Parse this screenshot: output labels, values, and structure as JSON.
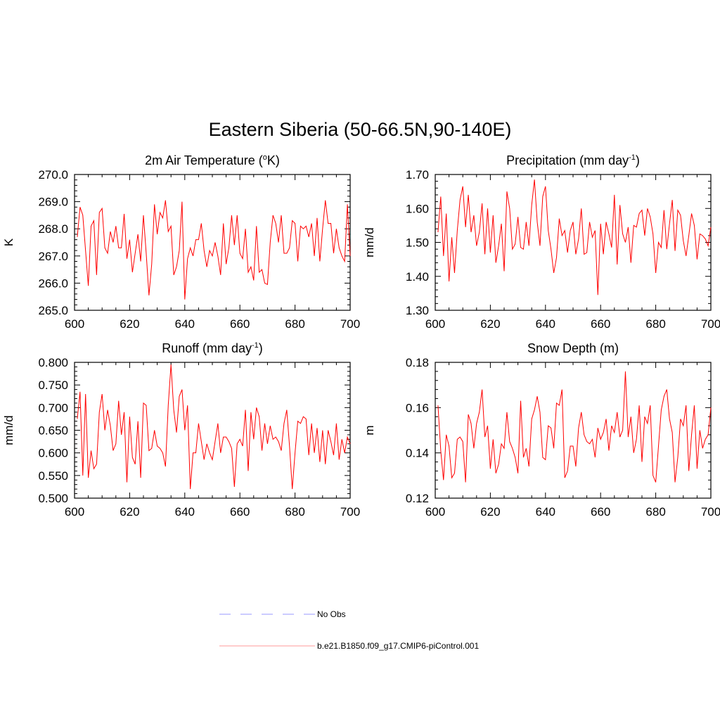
{
  "figure_title": "Eastern Siberia (50-66.5N,90-140E)",
  "colors": {
    "model_line": "#ff0000",
    "obs_line": "#9999ff",
    "model_legend": "#ff9999",
    "axes": "#000000"
  },
  "legend": [
    {
      "label": "No Obs",
      "style": "dashed"
    },
    {
      "label": "b.e21.B1850.f09_g17.CMIP6-piControl.001",
      "style": "solid"
    }
  ],
  "chart_data": [
    {
      "type": "line",
      "title": "2m Air Temperature (",
      "title_sup": "o",
      "title_after": "K)",
      "xlabel": "",
      "ylabel": "K",
      "xlim": [
        600,
        700
      ],
      "ylim": [
        265.0,
        270.0
      ],
      "xticks": [
        600,
        620,
        640,
        660,
        680,
        700
      ],
      "yticks": [
        265.0,
        266.0,
        267.0,
        268.0,
        269.0,
        270.0
      ],
      "ytick_labels": [
        "265.0",
        "266.0",
        "267.0",
        "268.0",
        "269.0",
        "270.0"
      ],
      "series": [
        {
          "name": "b.e21.B1850.f09_g17.CMIP6-piControl.001",
          "x": [
            601,
            602,
            603,
            604,
            605,
            606,
            607,
            608,
            609,
            610,
            611,
            612,
            613,
            614,
            615,
            616,
            617,
            618,
            619,
            620,
            621,
            622,
            623,
            624,
            625,
            626,
            627,
            628,
            629,
            630,
            631,
            632,
            633,
            634,
            635,
            636,
            637,
            638,
            639,
            640,
            641,
            642,
            643,
            644,
            645,
            646,
            647,
            648,
            649,
            650,
            651,
            652,
            653,
            654,
            655,
            656,
            657,
            658,
            659,
            660,
            661,
            662,
            663,
            664,
            665,
            666,
            667,
            668,
            669,
            670,
            671,
            672,
            673,
            674,
            675,
            676,
            677,
            678,
            679,
            680,
            681,
            682,
            683,
            684,
            685,
            686,
            687,
            688,
            689,
            690,
            691,
            692,
            693,
            694,
            695,
            696,
            697,
            698,
            699,
            700
          ],
          "values": [
            267.7,
            268.8,
            268.5,
            267.2,
            265.9,
            268.1,
            268.3,
            266.3,
            268.6,
            268.75,
            267.3,
            267.1,
            267.9,
            267.5,
            268.1,
            267.3,
            267.3,
            268.55,
            266.9,
            267.6,
            266.4,
            267.1,
            267.8,
            266.8,
            268.5,
            267.1,
            265.55,
            266.7,
            268.9,
            267.8,
            268.6,
            268.4,
            269.05,
            267.9,
            268.1,
            266.3,
            266.6,
            267.2,
            269.0,
            265.4,
            266.9,
            267.3,
            267.0,
            267.6,
            267.6,
            268.2,
            267.2,
            266.6,
            267.2,
            267.0,
            267.5,
            267.0,
            266.3,
            268.2,
            266.7,
            267.3,
            268.5,
            267.4,
            268.5,
            267.1,
            266.9,
            268.0,
            266.4,
            266.6,
            266.1,
            268.1,
            266.4,
            266.5,
            266.0,
            265.95,
            267.5,
            268.5,
            268.2,
            267.5,
            268.5,
            267.1,
            267.1,
            267.3,
            268.3,
            268.2,
            266.8,
            268.1,
            268.0,
            268.1,
            267.7,
            268.2,
            267.0,
            268.4,
            266.8,
            268.0,
            269.05,
            268.2,
            268.2,
            267.1,
            268.0,
            267.3,
            267.0,
            266.8,
            268.9,
            267.0
          ]
        }
      ]
    },
    {
      "type": "line",
      "title": "Precipitation (mm day",
      "title_sup": "-1",
      "title_after": ")",
      "xlabel": "",
      "ylabel": "mm/d",
      "xlim": [
        600,
        700
      ],
      "ylim": [
        1.3,
        1.7
      ],
      "xticks": [
        600,
        620,
        640,
        660,
        680,
        700
      ],
      "yticks": [
        1.3,
        1.4,
        1.5,
        1.6,
        1.7
      ],
      "ytick_labels": [
        "1.30",
        "1.40",
        "1.50",
        "1.60",
        "1.70"
      ],
      "series": [
        {
          "name": "b.e21.B1850.f09_g17.CMIP6-piControl.001",
          "x": [
            601,
            602,
            603,
            604,
            605,
            606,
            607,
            608,
            609,
            610,
            611,
            612,
            613,
            614,
            615,
            616,
            617,
            618,
            619,
            620,
            621,
            622,
            623,
            624,
            625,
            626,
            627,
            628,
            629,
            630,
            631,
            632,
            633,
            634,
            635,
            636,
            637,
            638,
            639,
            640,
            641,
            642,
            643,
            644,
            645,
            646,
            647,
            648,
            649,
            650,
            651,
            652,
            653,
            654,
            655,
            656,
            657,
            658,
            659,
            660,
            661,
            662,
            663,
            664,
            665,
            666,
            667,
            668,
            669,
            670,
            671,
            672,
            673,
            674,
            675,
            676,
            677,
            678,
            679,
            680,
            681,
            682,
            683,
            684,
            685,
            686,
            687,
            688,
            689,
            690,
            691,
            692,
            693,
            694,
            695,
            696,
            697,
            698,
            699,
            700
          ],
          "values": [
            1.53,
            1.635,
            1.46,
            1.585,
            1.385,
            1.515,
            1.41,
            1.535,
            1.625,
            1.665,
            1.545,
            1.64,
            1.53,
            1.58,
            1.49,
            1.53,
            1.615,
            1.465,
            1.6,
            1.47,
            1.58,
            1.44,
            1.49,
            1.555,
            1.415,
            1.65,
            1.6,
            1.48,
            1.495,
            1.575,
            1.485,
            1.48,
            1.56,
            1.49,
            1.61,
            1.685,
            1.56,
            1.49,
            1.635,
            1.665,
            1.535,
            1.48,
            1.41,
            1.455,
            1.57,
            1.52,
            1.535,
            1.47,
            1.535,
            1.56,
            1.465,
            1.51,
            1.6,
            1.465,
            1.47,
            1.56,
            1.515,
            1.535,
            1.345,
            1.555,
            1.465,
            1.56,
            1.525,
            1.485,
            1.64,
            1.435,
            1.61,
            1.525,
            1.5,
            1.545,
            1.44,
            1.55,
            1.545,
            1.585,
            1.595,
            1.52,
            1.6,
            1.575,
            1.525,
            1.41,
            1.5,
            1.485,
            1.595,
            1.48,
            1.555,
            1.625,
            1.475,
            1.595,
            1.58,
            1.505,
            1.46,
            1.52,
            1.585,
            1.55,
            1.45,
            1.525,
            1.52,
            1.51,
            1.49,
            1.545
          ]
        }
      ]
    },
    {
      "type": "line",
      "title": "Runoff (mm day",
      "title_sup": "-1",
      "title_after": ")",
      "xlabel": "",
      "ylabel": "mm/d",
      "xlim": [
        600,
        700
      ],
      "ylim": [
        0.5,
        0.8
      ],
      "xticks": [
        600,
        620,
        640,
        660,
        680,
        700
      ],
      "yticks": [
        0.5,
        0.55,
        0.6,
        0.65,
        0.7,
        0.75,
        0.8
      ],
      "ytick_labels": [
        "0.500",
        "0.550",
        "0.600",
        "0.650",
        "0.700",
        "0.750",
        "0.800"
      ],
      "series": [
        {
          "name": "b.e21.B1850.f09_g17.CMIP6-piControl.001",
          "x": [
            601,
            602,
            603,
            604,
            605,
            606,
            607,
            608,
            609,
            610,
            611,
            612,
            613,
            614,
            615,
            616,
            617,
            618,
            619,
            620,
            621,
            622,
            623,
            624,
            625,
            626,
            627,
            628,
            629,
            630,
            631,
            632,
            633,
            634,
            635,
            636,
            637,
            638,
            639,
            640,
            641,
            642,
            643,
            644,
            645,
            646,
            647,
            648,
            649,
            650,
            651,
            652,
            653,
            654,
            655,
            656,
            657,
            658,
            659,
            660,
            661,
            662,
            663,
            664,
            665,
            666,
            667,
            668,
            669,
            670,
            671,
            672,
            673,
            674,
            675,
            676,
            677,
            678,
            679,
            680,
            681,
            682,
            683,
            684,
            685,
            686,
            687,
            688,
            689,
            690,
            691,
            692,
            693,
            694,
            695,
            696,
            697,
            698,
            699,
            700
          ],
          "values": [
            0.675,
            0.735,
            0.55,
            0.73,
            0.545,
            0.605,
            0.565,
            0.575,
            0.69,
            0.73,
            0.65,
            0.695,
            0.66,
            0.605,
            0.62,
            0.715,
            0.64,
            0.69,
            0.535,
            0.68,
            0.59,
            0.575,
            0.67,
            0.545,
            0.71,
            0.705,
            0.605,
            0.61,
            0.65,
            0.615,
            0.61,
            0.6,
            0.57,
            0.705,
            0.795,
            0.695,
            0.645,
            0.725,
            0.74,
            0.65,
            0.705,
            0.52,
            0.6,
            0.6,
            0.665,
            0.625,
            0.585,
            0.62,
            0.6,
            0.585,
            0.625,
            0.665,
            0.6,
            0.635,
            0.635,
            0.625,
            0.61,
            0.525,
            0.62,
            0.63,
            0.615,
            0.695,
            0.56,
            0.69,
            0.63,
            0.7,
            0.68,
            0.605,
            0.665,
            0.62,
            0.66,
            0.63,
            0.635,
            0.625,
            0.605,
            0.665,
            0.695,
            0.615,
            0.52,
            0.6,
            0.67,
            0.665,
            0.68,
            0.675,
            0.595,
            0.665,
            0.6,
            0.655,
            0.58,
            0.65,
            0.575,
            0.65,
            0.625,
            0.595,
            0.665,
            0.585,
            0.63,
            0.6,
            0.635,
            0.62
          ]
        }
      ]
    },
    {
      "type": "line",
      "title": "Snow Depth (m)",
      "title_sup": "",
      "title_after": "",
      "xlabel": "",
      "ylabel": "m",
      "xlim": [
        600,
        700
      ],
      "ylim": [
        0.12,
        0.18
      ],
      "xticks": [
        600,
        620,
        640,
        660,
        680,
        700
      ],
      "yticks": [
        0.12,
        0.14,
        0.16,
        0.18
      ],
      "ytick_labels": [
        "0.12",
        "0.14",
        "0.16",
        "0.18"
      ],
      "series": [
        {
          "name": "b.e21.B1850.f09_g17.CMIP6-piControl.001",
          "x": [
            601,
            602,
            603,
            604,
            605,
            606,
            607,
            608,
            609,
            610,
            611,
            612,
            613,
            614,
            615,
            616,
            617,
            618,
            619,
            620,
            621,
            622,
            623,
            624,
            625,
            626,
            627,
            628,
            629,
            630,
            631,
            632,
            633,
            634,
            635,
            636,
            637,
            638,
            639,
            640,
            641,
            642,
            643,
            644,
            645,
            646,
            647,
            648,
            649,
            650,
            651,
            652,
            653,
            654,
            655,
            656,
            657,
            658,
            659,
            660,
            661,
            662,
            663,
            664,
            665,
            666,
            667,
            668,
            669,
            670,
            671,
            672,
            673,
            674,
            675,
            676,
            677,
            678,
            679,
            680,
            681,
            682,
            683,
            684,
            685,
            686,
            687,
            688,
            689,
            690,
            691,
            692,
            693,
            694,
            695,
            696,
            697,
            698,
            699,
            700
          ],
          "values": [
            0.161,
            0.141,
            0.128,
            0.148,
            0.143,
            0.129,
            0.131,
            0.146,
            0.147,
            0.145,
            0.127,
            0.157,
            0.153,
            0.142,
            0.153,
            0.158,
            0.168,
            0.147,
            0.152,
            0.133,
            0.146,
            0.131,
            0.135,
            0.144,
            0.142,
            0.158,
            0.145,
            0.142,
            0.138,
            0.131,
            0.163,
            0.138,
            0.142,
            0.134,
            0.155,
            0.159,
            0.165,
            0.158,
            0.138,
            0.137,
            0.152,
            0.151,
            0.142,
            0.162,
            0.161,
            0.168,
            0.129,
            0.132,
            0.143,
            0.143,
            0.134,
            0.151,
            0.158,
            0.148,
            0.145,
            0.144,
            0.146,
            0.138,
            0.151,
            0.146,
            0.149,
            0.155,
            0.141,
            0.152,
            0.149,
            0.158,
            0.147,
            0.15,
            0.176,
            0.147,
            0.156,
            0.14,
            0.146,
            0.161,
            0.136,
            0.156,
            0.153,
            0.161,
            0.13,
            0.127,
            0.143,
            0.159,
            0.165,
            0.168,
            0.155,
            0.149,
            0.127,
            0.138,
            0.155,
            0.152,
            0.161,
            0.132,
            0.148,
            0.161,
            0.133,
            0.15,
            0.142,
            0.146,
            0.148,
            0.16
          ]
        }
      ]
    }
  ]
}
